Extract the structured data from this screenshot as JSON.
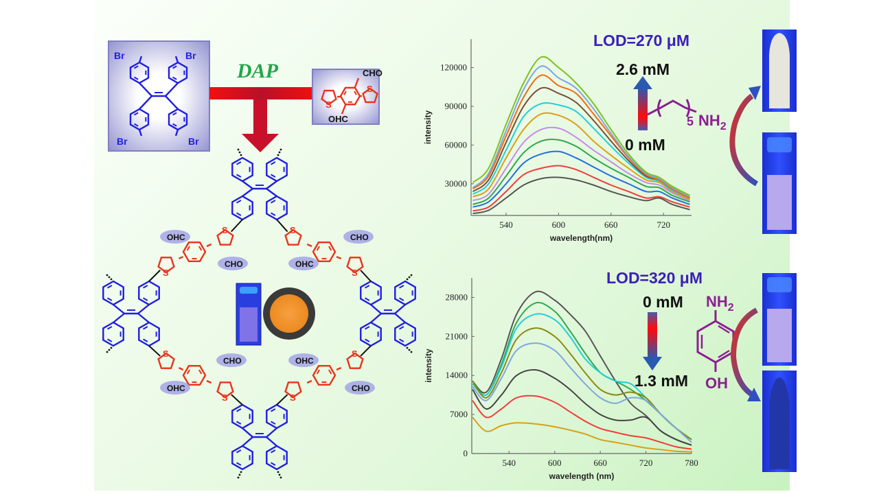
{
  "reaction": {
    "monomer_labels": [
      "Br",
      "Br",
      "Br",
      "Br"
    ],
    "catalyst_label": "DAP",
    "linker_labels": [
      "CHO",
      "OHC",
      "S",
      "S"
    ]
  },
  "network": {
    "aldehyde_labels": [
      "OHC",
      "CHO",
      "CHO",
      "OHC",
      "CHO",
      "OHC",
      "OHC",
      "CHO"
    ],
    "sulfur_label": "S",
    "colors": {
      "tpe": "#1f1fe0",
      "linker": "#e8331c",
      "powder": "#f0902a"
    }
  },
  "panel_top": {
    "lod": "LOD=270 μM",
    "conc_high": "2.6 mM",
    "conc_low": "0 mM",
    "analyte_repeat": "5",
    "analyte_group": "NH",
    "analyte_sub": "2"
  },
  "panel_bottom": {
    "lod": "LOD=320 μM",
    "conc_start": "0 mM",
    "conc_end": "1.3 mM",
    "analyte_top": "NH",
    "analyte_top_sub": "2",
    "analyte_bottom": "OH"
  },
  "chart_data": [
    {
      "type": "line",
      "title": "",
      "xlabel": "wavelength(nm)",
      "ylabel": "intensity",
      "xlim": [
        500,
        752
      ],
      "ylim": [
        5500,
        142000
      ],
      "xticks": [
        "540",
        "600",
        "660",
        "720"
      ],
      "xtick_values": [
        540,
        600,
        660,
        720
      ],
      "yticks": [
        "30000",
        "60000",
        "90000",
        "120000"
      ],
      "ytick_values": [
        30000,
        60000,
        90000,
        120000
      ],
      "grid": false,
      "x": [
        502,
        520,
        540,
        560,
        580,
        600,
        620,
        640,
        660,
        680,
        700,
        715,
        730,
        750
      ],
      "series": [
        {
          "name": "0 mM",
          "color": "#555555",
          "values": [
            7000,
            9500,
            19000,
            29000,
            34000,
            35000,
            33000,
            29000,
            24000,
            20000,
            17000,
            19000,
            14000,
            10000
          ]
        },
        {
          "name": "c2",
          "color": "#f03c3c",
          "values": [
            9000,
            12000,
            24000,
            37000,
            42000,
            44000,
            41000,
            35000,
            29000,
            24000,
            19000,
            20000,
            16000,
            12000
          ]
        },
        {
          "name": "c3",
          "color": "#1f6fe0",
          "values": [
            12000,
            16000,
            30000,
            46000,
            53000,
            55000,
            50000,
            43000,
            36000,
            30000,
            24000,
            24000,
            19000,
            14000
          ]
        },
        {
          "name": "c4",
          "color": "#2ea84f",
          "values": [
            14000,
            19000,
            36000,
            54000,
            63000,
            64000,
            59000,
            50000,
            42000,
            35000,
            28000,
            27000,
            21000,
            16000
          ]
        },
        {
          "name": "c5",
          "color": "#c68be8",
          "values": [
            17000,
            22000,
            42000,
            62000,
            72000,
            73000,
            66000,
            56000,
            47000,
            38000,
            31000,
            29000,
            23000,
            17000
          ]
        },
        {
          "name": "c6",
          "color": "#d9a016",
          "values": [
            20000,
            26000,
            50000,
            72000,
            84000,
            83000,
            76000,
            63000,
            52000,
            42000,
            33000,
            31000,
            24000,
            18000
          ]
        },
        {
          "name": "c7",
          "color": "#1fd0d6",
          "values": [
            22000,
            30000,
            56000,
            82000,
            92000,
            91000,
            86000,
            73000,
            59000,
            46000,
            35000,
            32000,
            25000,
            19000
          ]
        },
        {
          "name": "c8",
          "color": "#7a4a3a",
          "values": [
            24000,
            33000,
            62000,
            90000,
            104000,
            100000,
            93000,
            79000,
            63000,
            48000,
            36000,
            33000,
            26000,
            19000
          ]
        },
        {
          "name": "c9",
          "color": "#f26a10",
          "values": [
            26000,
            36000,
            67000,
            97000,
            114000,
            106000,
            100000,
            84000,
            67000,
            50000,
            37000,
            33000,
            26000,
            19000
          ]
        },
        {
          "name": "c10",
          "color": "#7fa6e0",
          "values": [
            27000,
            38000,
            71000,
            103000,
            121000,
            112000,
            104000,
            88000,
            69000,
            51000,
            38000,
            34000,
            27000,
            20000
          ]
        },
        {
          "name": "2.6 mM",
          "color": "#7cc21e",
          "values": [
            31000,
            42000,
            76000,
            108000,
            128000,
            120000,
            108000,
            92000,
            72000,
            53000,
            39000,
            35000,
            28000,
            21000
          ]
        }
      ]
    },
    {
      "type": "line",
      "title": "",
      "xlabel": "wavelength (nm)",
      "ylabel": "intensity",
      "xlim": [
        491,
        780
      ],
      "ylim": [
        0,
        31500
      ],
      "xticks": [
        "540",
        "600",
        "660",
        "720",
        "780"
      ],
      "xtick_values": [
        540,
        600,
        660,
        720,
        780
      ],
      "yticks": [
        "0",
        "7000",
        "14000",
        "21000",
        "28000"
      ],
      "ytick_values": [
        0,
        7000,
        14000,
        21000,
        28000
      ],
      "grid": false,
      "x": [
        492,
        510,
        530,
        550,
        575,
        600,
        620,
        640,
        660,
        680,
        700,
        720,
        740,
        760,
        780
      ],
      "series": [
        {
          "name": "0 mM",
          "color": "#555555",
          "values": [
            13000,
            11000,
            17000,
            25000,
            29000,
            27500,
            25000,
            22000,
            17500,
            13000,
            9000,
            6800,
            4000,
            2500,
            1500
          ]
        },
        {
          "name": "c2",
          "color": "#2ea84f",
          "values": [
            13000,
            10500,
            16000,
            23500,
            27000,
            25500,
            22000,
            18000,
            14500,
            13000,
            11500,
            9500,
            7000,
            4500,
            2500
          ]
        },
        {
          "name": "c3",
          "color": "#1fd0d6",
          "values": [
            12500,
            10500,
            15500,
            22500,
            25000,
            24000,
            21000,
            17000,
            14500,
            13000,
            12500,
            10000,
            7000,
            4500,
            2500
          ]
        },
        {
          "name": "c4",
          "color": "#8a8a10",
          "values": [
            13000,
            10000,
            14500,
            20500,
            22500,
            21000,
            18000,
            14500,
            11500,
            10500,
            11000,
            10000,
            7000,
            4500,
            2500
          ]
        },
        {
          "name": "c5",
          "color": "#7fa6e0",
          "values": [
            12000,
            9500,
            13500,
            18500,
            19800,
            18500,
            15500,
            12500,
            10000,
            9000,
            10000,
            9500,
            7000,
            4500,
            2000
          ]
        },
        {
          "name": "c6",
          "color": "#444444",
          "values": [
            11500,
            8000,
            10500,
            14000,
            15000,
            13500,
            11500,
            9000,
            7000,
            6000,
            6000,
            6500,
            4000,
            2500,
            1500
          ]
        },
        {
          "name": "c7",
          "color": "#f03c3c",
          "values": [
            9500,
            6500,
            8000,
            10000,
            10300,
            9200,
            7500,
            5800,
            4500,
            3800,
            3200,
            2800,
            2000,
            1200,
            800
          ]
        },
        {
          "name": "1.3 mM",
          "color": "#d9a016",
          "values": [
            6500,
            4000,
            5000,
            5500,
            5300,
            4800,
            4200,
            3500,
            2500,
            2000,
            1500,
            1000,
            700,
            400,
            300
          ]
        }
      ]
    }
  ]
}
